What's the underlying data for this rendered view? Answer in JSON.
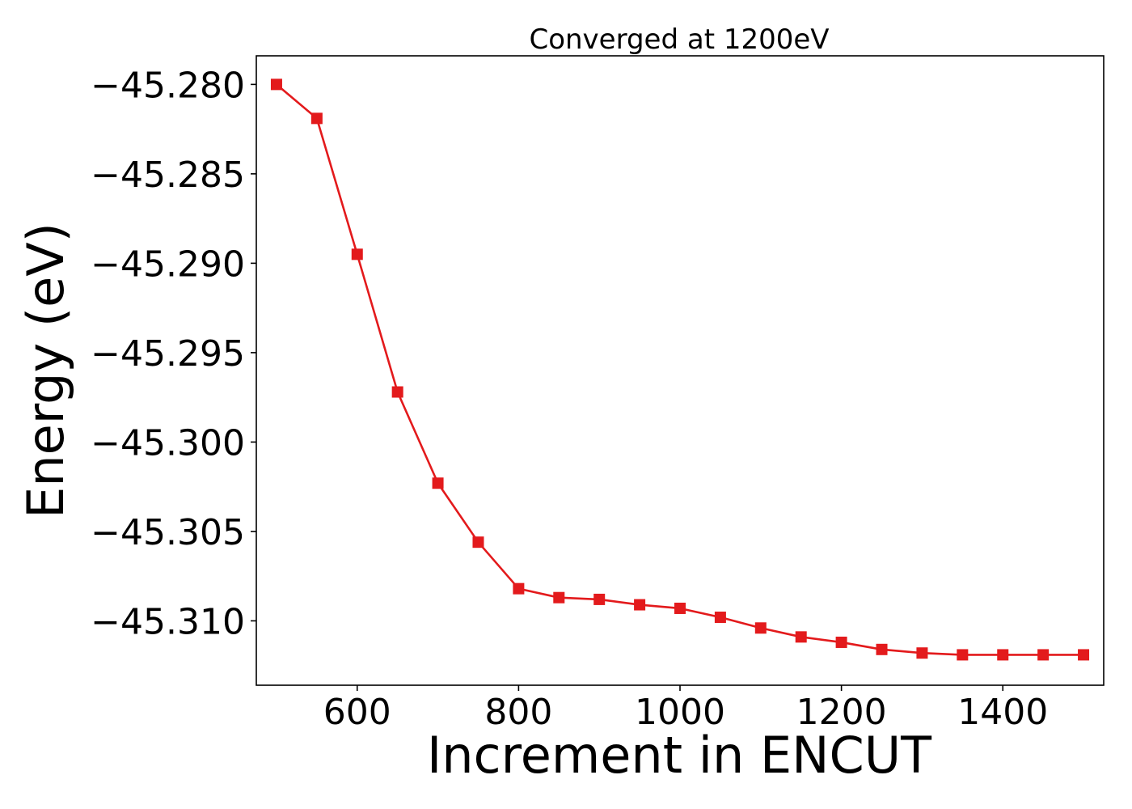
{
  "chart_data": {
    "type": "line",
    "title": "Converged at 1200eV",
    "xlabel": "Increment in ENCUT",
    "ylabel": "Energy (eV)",
    "xlim": [
      475,
      1525
    ],
    "ylim": [
      -45.3136,
      -45.2784
    ],
    "xticks": [
      600,
      800,
      1000,
      1200,
      1400
    ],
    "xtick_labels": [
      "600",
      "800",
      "1000",
      "1200",
      "1400"
    ],
    "yticks": [
      -45.28,
      -45.285,
      -45.29,
      -45.295,
      -45.3,
      -45.305,
      -45.31
    ],
    "ytick_labels": [
      "−45.280",
      "−45.285",
      "−45.290",
      "−45.295",
      "−45.300",
      "−45.305",
      "−45.310"
    ],
    "grid": false,
    "series": [
      {
        "color": "#e31a1c",
        "marker": "square",
        "x": [
          500,
          550,
          600,
          650,
          700,
          750,
          800,
          850,
          900,
          950,
          1000,
          1050,
          1100,
          1150,
          1200,
          1250,
          1300,
          1350,
          1400,
          1450,
          1500
        ],
        "y": [
          -45.28,
          -45.2819,
          -45.2895,
          -45.2972,
          -45.3023,
          -45.3056,
          -45.3082,
          -45.3087,
          -45.3088,
          -45.3091,
          -45.3093,
          -45.3098,
          -45.3104,
          -45.3109,
          -45.3112,
          -45.3116,
          -45.3118,
          -45.3119,
          -45.3119,
          -45.3119,
          -45.3119
        ]
      }
    ]
  }
}
